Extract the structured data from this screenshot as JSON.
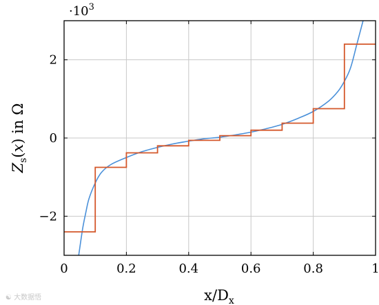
{
  "chart_data": {
    "type": "line",
    "xlabel": "x/D",
    "xlabel_sub": "x",
    "ylabel_parts": [
      "Z",
      "s",
      "(",
      "x",
      ") in Ω"
    ],
    "y_multiplier": "·10",
    "y_multiplier_exp": "3",
    "xlim": [
      0,
      1
    ],
    "ylim": [
      -3000,
      3000
    ],
    "x_ticks": [
      0,
      0.2,
      0.4,
      0.6,
      0.8,
      1
    ],
    "x_tick_labels": [
      "0",
      "0.2",
      "0.4",
      "0.6",
      "0.8",
      "1"
    ],
    "y_ticks": [
      -2000,
      0,
      2000
    ],
    "y_tick_labels": [
      "−2",
      "0",
      "2"
    ],
    "grid": true,
    "series": [
      {
        "color": "#4a90d9",
        "style": "smooth",
        "x": [
          0.047,
          0.06,
          0.07,
          0.08,
          0.1,
          0.12,
          0.15,
          0.2,
          0.25,
          0.3,
          0.35,
          0.4,
          0.45,
          0.5,
          0.55,
          0.6,
          0.65,
          0.7,
          0.75,
          0.8,
          0.85,
          0.88,
          0.9,
          0.92,
          0.94,
          0.96
        ],
        "y": [
          -3000,
          -2300,
          -1900,
          -1550,
          -1150,
          -880,
          -680,
          -500,
          -350,
          -240,
          -150,
          -80,
          -20,
          20,
          80,
          150,
          240,
          350,
          500,
          680,
          950,
          1200,
          1450,
          1800,
          2400,
          3000
        ]
      },
      {
        "color": "#d4572a",
        "style": "step",
        "edges": [
          0,
          0.1,
          0.2,
          0.3,
          0.4,
          0.5,
          0.6,
          0.7,
          0.8,
          0.9,
          1
        ],
        "values": [
          -2400,
          -750,
          -380,
          -200,
          -60,
          60,
          200,
          380,
          750,
          2400
        ]
      }
    ]
  },
  "watermark": "大数据悟"
}
